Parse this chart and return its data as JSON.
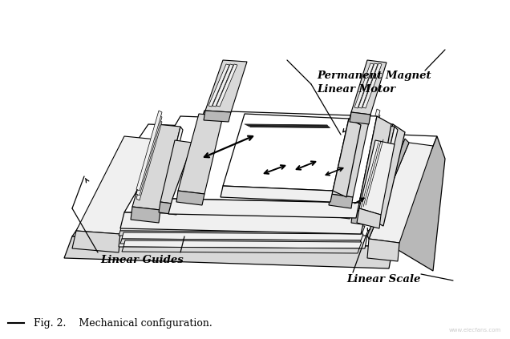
{
  "caption": "Fig. 2.    Mechanical configuration.",
  "label_pm": "Permanent Magnet\nLinear Motor",
  "label_lg": "Linear Guides",
  "label_ls": "Linear Scale",
  "bg": "#ffffff",
  "lc": "#000000",
  "gray1": "#f0f0f0",
  "gray2": "#d8d8d8",
  "gray3": "#b8b8b8",
  "fig_w": 6.36,
  "fig_h": 4.23,
  "dpi": 100
}
